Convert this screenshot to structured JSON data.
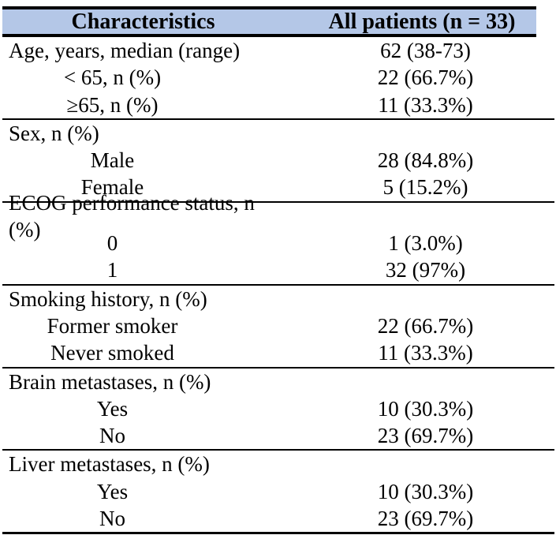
{
  "colors": {
    "header_bg": "#b4c7e7",
    "border": "#000000",
    "text": "#000000"
  },
  "table": {
    "header": {
      "characteristics": "Characteristics",
      "all_patients": "All patients (n = 33)"
    },
    "sections": [
      {
        "name": "age",
        "rows": [
          {
            "label": "Age, years, median (range)",
            "value": "62 (38-73)"
          },
          {
            "label": "< 65, n (%)",
            "value": "22 (66.7%)"
          },
          {
            "label": "≥65, n (%)",
            "value": "11 (33.3%)"
          }
        ]
      },
      {
        "name": "sex",
        "rows": [
          {
            "label": "Sex, n (%)",
            "value": ""
          },
          {
            "label": "Male",
            "value": "28 (84.8%)"
          },
          {
            "label": "Female",
            "value": "5 (15.2%)"
          }
        ]
      },
      {
        "name": "ecog",
        "rows": [
          {
            "label": "ECOG performance status, n (%)",
            "value": ""
          },
          {
            "label": "0",
            "value": "1 (3.0%)"
          },
          {
            "label": "1",
            "value": "32 (97%)"
          }
        ]
      },
      {
        "name": "smoking",
        "rows": [
          {
            "label": "Smoking history, n (%)",
            "value": ""
          },
          {
            "label": "Former smoker",
            "value": "22 (66.7%)"
          },
          {
            "label": "Never smoked",
            "value": "11 (33.3%)"
          }
        ]
      },
      {
        "name": "brain-metastases",
        "rows": [
          {
            "label": "Brain metastases, n (%)",
            "value": ""
          },
          {
            "label": "Yes",
            "value": "10 (30.3%)"
          },
          {
            "label": "No",
            "value": "23 (69.7%)"
          }
        ]
      },
      {
        "name": "liver-metastases",
        "rows": [
          {
            "label": "Liver metastases, n (%)",
            "value": ""
          },
          {
            "label": "Yes",
            "value": "10 (30.3%)"
          },
          {
            "label": "No",
            "value": "23 (69.7%)"
          }
        ]
      }
    ]
  }
}
